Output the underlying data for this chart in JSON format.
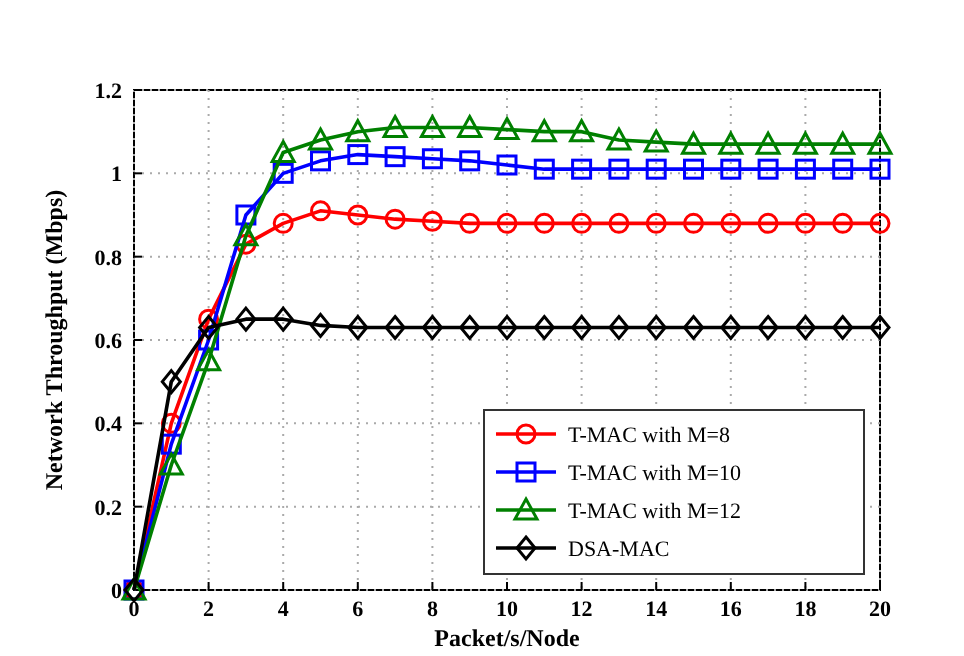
{
  "chart_data": {
    "type": "line",
    "xlabel": "Packet/s/Node",
    "ylabel": "Network Throughput (Mbps)",
    "x": [
      0,
      1,
      2,
      3,
      4,
      5,
      6,
      7,
      8,
      9,
      10,
      11,
      12,
      13,
      14,
      15,
      16,
      17,
      18,
      19,
      20
    ],
    "series": [
      {
        "name": "T-MAC with M=8",
        "color": "#ff0000",
        "marker": "circle",
        "values": [
          0,
          0.4,
          0.65,
          0.83,
          0.88,
          0.91,
          0.9,
          0.89,
          0.885,
          0.88,
          0.88,
          0.88,
          0.88,
          0.88,
          0.88,
          0.88,
          0.88,
          0.88,
          0.88,
          0.88,
          0.88
        ]
      },
      {
        "name": "T-MAC with M=10",
        "color": "#0000ff",
        "marker": "square",
        "values": [
          0,
          0.35,
          0.6,
          0.9,
          1.0,
          1.03,
          1.045,
          1.04,
          1.035,
          1.03,
          1.02,
          1.01,
          1.01,
          1.01,
          1.01,
          1.01,
          1.01,
          1.01,
          1.01,
          1.01,
          1.01
        ]
      },
      {
        "name": "T-MAC with M=12",
        "color": "#008000",
        "marker": "triangle",
        "values": [
          0,
          0.3,
          0.55,
          0.85,
          1.05,
          1.08,
          1.1,
          1.11,
          1.11,
          1.11,
          1.105,
          1.1,
          1.1,
          1.08,
          1.075,
          1.07,
          1.07,
          1.07,
          1.07,
          1.07,
          1.07
        ]
      },
      {
        "name": "DSA-MAC",
        "color": "#000000",
        "marker": "diamond",
        "values": [
          0,
          0.5,
          0.63,
          0.65,
          0.65,
          0.635,
          0.63,
          0.63,
          0.63,
          0.63,
          0.63,
          0.63,
          0.63,
          0.63,
          0.63,
          0.63,
          0.63,
          0.63,
          0.63,
          0.63,
          0.63
        ]
      }
    ],
    "xlim": [
      0,
      20
    ],
    "xticks": [
      0,
      2,
      4,
      6,
      8,
      10,
      12,
      14,
      16,
      18,
      20
    ],
    "ylim": [
      0,
      1.2
    ],
    "yticks": [
      0,
      0.2,
      0.4,
      0.6,
      0.8,
      1,
      1.2
    ],
    "grid": true,
    "legend": "bottom right",
    "line_style": "solid"
  }
}
